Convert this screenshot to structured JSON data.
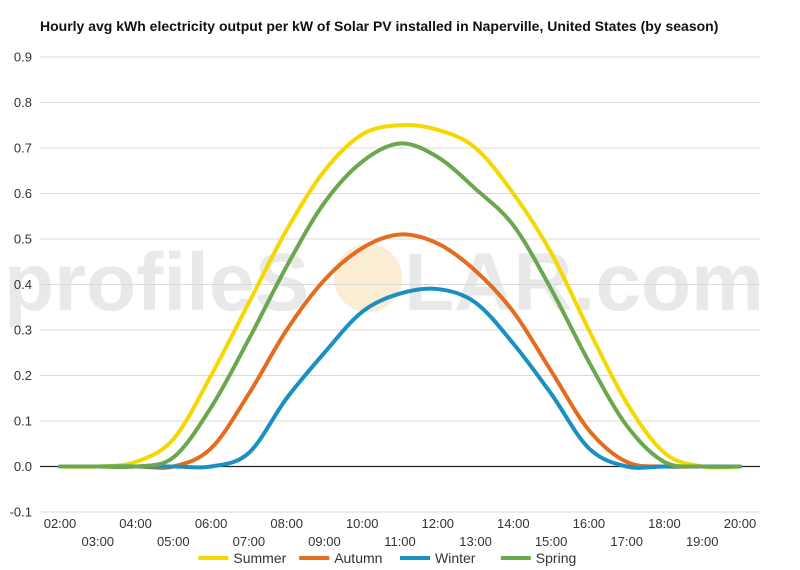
{
  "chart_data": {
    "type": "line",
    "title": "Hourly avg kWh electricity output per kW of Solar PV installed in Naperville, United States (by season)",
    "xlabel": "",
    "ylabel": "",
    "ylim": [
      -0.1,
      0.9
    ],
    "yticks": [
      -0.1,
      0.0,
      0.1,
      0.2,
      0.3,
      0.4,
      0.5,
      0.6,
      0.7,
      0.8,
      0.9
    ],
    "ytick_labels": [
      "-0.1",
      "0.0",
      "0.1",
      "0.2",
      "0.3",
      "0.4",
      "0.5",
      "0.6",
      "0.7",
      "0.8",
      "0.9"
    ],
    "x": [
      "02:00",
      "03:00",
      "04:00",
      "05:00",
      "06:00",
      "07:00",
      "08:00",
      "09:00",
      "10:00",
      "11:00",
      "12:00",
      "13:00",
      "14:00",
      "15:00",
      "16:00",
      "17:00",
      "18:00",
      "19:00",
      "20:00"
    ],
    "grid": true,
    "legend_position": "bottom",
    "series": [
      {
        "name": "Summer",
        "color": "#f5d800",
        "values": [
          0,
          0,
          0.01,
          0.06,
          0.2,
          0.36,
          0.52,
          0.65,
          0.73,
          0.75,
          0.74,
          0.7,
          0.6,
          0.47,
          0.3,
          0.14,
          0.03,
          0,
          0
        ]
      },
      {
        "name": "Autumn",
        "color": "#e36c1e",
        "values": [
          0,
          0,
          0,
          0.0,
          0.04,
          0.16,
          0.3,
          0.41,
          0.48,
          0.51,
          0.49,
          0.43,
          0.34,
          0.21,
          0.08,
          0.01,
          0,
          0,
          0
        ]
      },
      {
        "name": "Winter",
        "color": "#1a8fc1",
        "values": [
          0,
          0,
          0,
          0,
          0,
          0.03,
          0.15,
          0.25,
          0.34,
          0.38,
          0.39,
          0.36,
          0.27,
          0.16,
          0.04,
          0,
          0,
          0,
          0
        ]
      },
      {
        "name": "Spring",
        "color": "#6aa84f",
        "values": [
          0,
          0,
          0,
          0.02,
          0.13,
          0.28,
          0.44,
          0.58,
          0.67,
          0.71,
          0.68,
          0.61,
          0.53,
          0.39,
          0.23,
          0.09,
          0.01,
          0,
          0
        ]
      }
    ]
  },
  "watermark": {
    "text_left": "profileS",
    "text_right": "LAR.com"
  }
}
